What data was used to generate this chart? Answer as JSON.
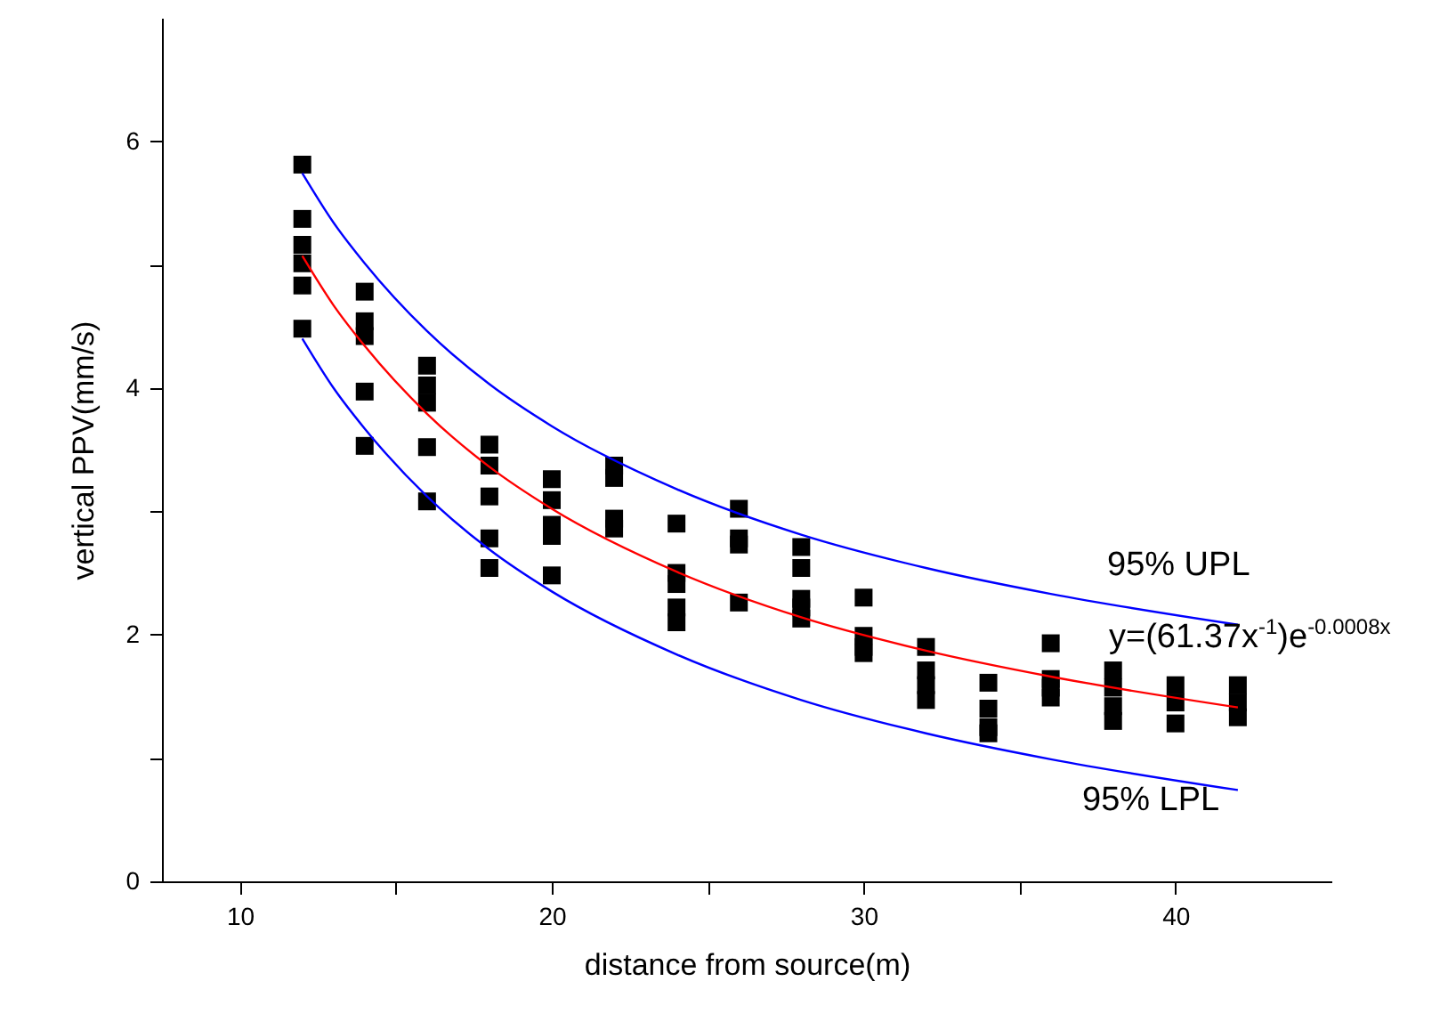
{
  "chart_data": {
    "type": "scatter",
    "xlabel": "distance from source(m)",
    "ylabel": "vertical PPV(mm/s)",
    "xlim": [
      7.5,
      45
    ],
    "ylim": [
      0,
      7
    ],
    "xticks": [
      10,
      {
        "value": 15,
        "label": null
      },
      20,
      {
        "value": 25,
        "label": null
      },
      30,
      {
        "value": 35,
        "label": null
      },
      40
    ],
    "yticks": [
      0,
      {
        "value": 1,
        "label": null
      },
      2,
      {
        "value": 3,
        "label": null
      },
      4,
      {
        "value": 5,
        "label": null
      },
      6
    ],
    "grid": false,
    "series": [
      {
        "marker": "square",
        "color": "#000000",
        "x": [
          12,
          12,
          12,
          12,
          12,
          12,
          14,
          14,
          14,
          14,
          14,
          16,
          16,
          16,
          16,
          16,
          18,
          18,
          18,
          18,
          18,
          20,
          20,
          20,
          20,
          20,
          22,
          22,
          22,
          22,
          24,
          24,
          24,
          24,
          24,
          26,
          26,
          26,
          26,
          28,
          28,
          28,
          28,
          28,
          30,
          30,
          30,
          30,
          32,
          32,
          32,
          32,
          34,
          34,
          34,
          34,
          36,
          36,
          36,
          36,
          38,
          38,
          38,
          38,
          40,
          40,
          40,
          42,
          42,
          42
        ],
        "values": [
          5.81,
          5.37,
          5.16,
          5.01,
          4.83,
          4.48,
          4.78,
          4.54,
          4.42,
          3.97,
          3.53,
          4.18,
          4.02,
          3.88,
          3.52,
          3.08,
          3.54,
          3.37,
          3.12,
          2.78,
          2.54,
          3.26,
          3.09,
          2.89,
          2.8,
          2.48,
          3.37,
          3.27,
          2.94,
          2.86,
          2.9,
          2.5,
          2.41,
          2.22,
          2.1,
          3.02,
          2.78,
          2.73,
          2.26,
          2.71,
          2.54,
          2.29,
          2.22,
          2.13,
          2.3,
          1.99,
          1.9,
          1.85,
          1.9,
          1.71,
          1.59,
          1.47,
          1.61,
          1.4,
          1.25,
          1.2,
          1.93,
          1.64,
          1.57,
          1.49,
          1.71,
          1.57,
          1.42,
          1.3,
          1.59,
          1.45,
          1.28,
          1.59,
          1.45,
          1.33
        ]
      },
      {
        "type": "line",
        "marker": "none",
        "color": "#ff0000",
        "x": [
          12,
          13,
          14,
          16,
          18,
          20,
          24,
          28,
          32,
          36,
          42
        ],
        "values": [
          5.07,
          4.67,
          4.34,
          3.79,
          3.36,
          3.02,
          2.51,
          2.14,
          1.87,
          1.66,
          1.41
        ]
      },
      {
        "type": "line",
        "marker": "none",
        "color": "#0000ff",
        "x": [
          12,
          13,
          14,
          16,
          18,
          20,
          24,
          28,
          32,
          36,
          42
        ],
        "values": [
          5.74,
          5.34,
          5.01,
          4.46,
          4.03,
          3.69,
          3.18,
          2.81,
          2.54,
          2.33,
          2.08
        ]
      },
      {
        "type": "line",
        "marker": "none",
        "color": "#0000ff",
        "x": [
          12,
          13,
          14,
          16,
          18,
          20,
          24,
          28,
          32,
          36,
          42
        ],
        "values": [
          4.4,
          4.0,
          3.67,
          3.12,
          2.69,
          2.35,
          1.84,
          1.47,
          1.2,
          0.99,
          0.74
        ]
      }
    ],
    "annotations": [
      "95% UPL",
      "y=(61.37x$^{-1}$)e$^{-0.0008x}$",
      "95% LPL"
    ]
  }
}
